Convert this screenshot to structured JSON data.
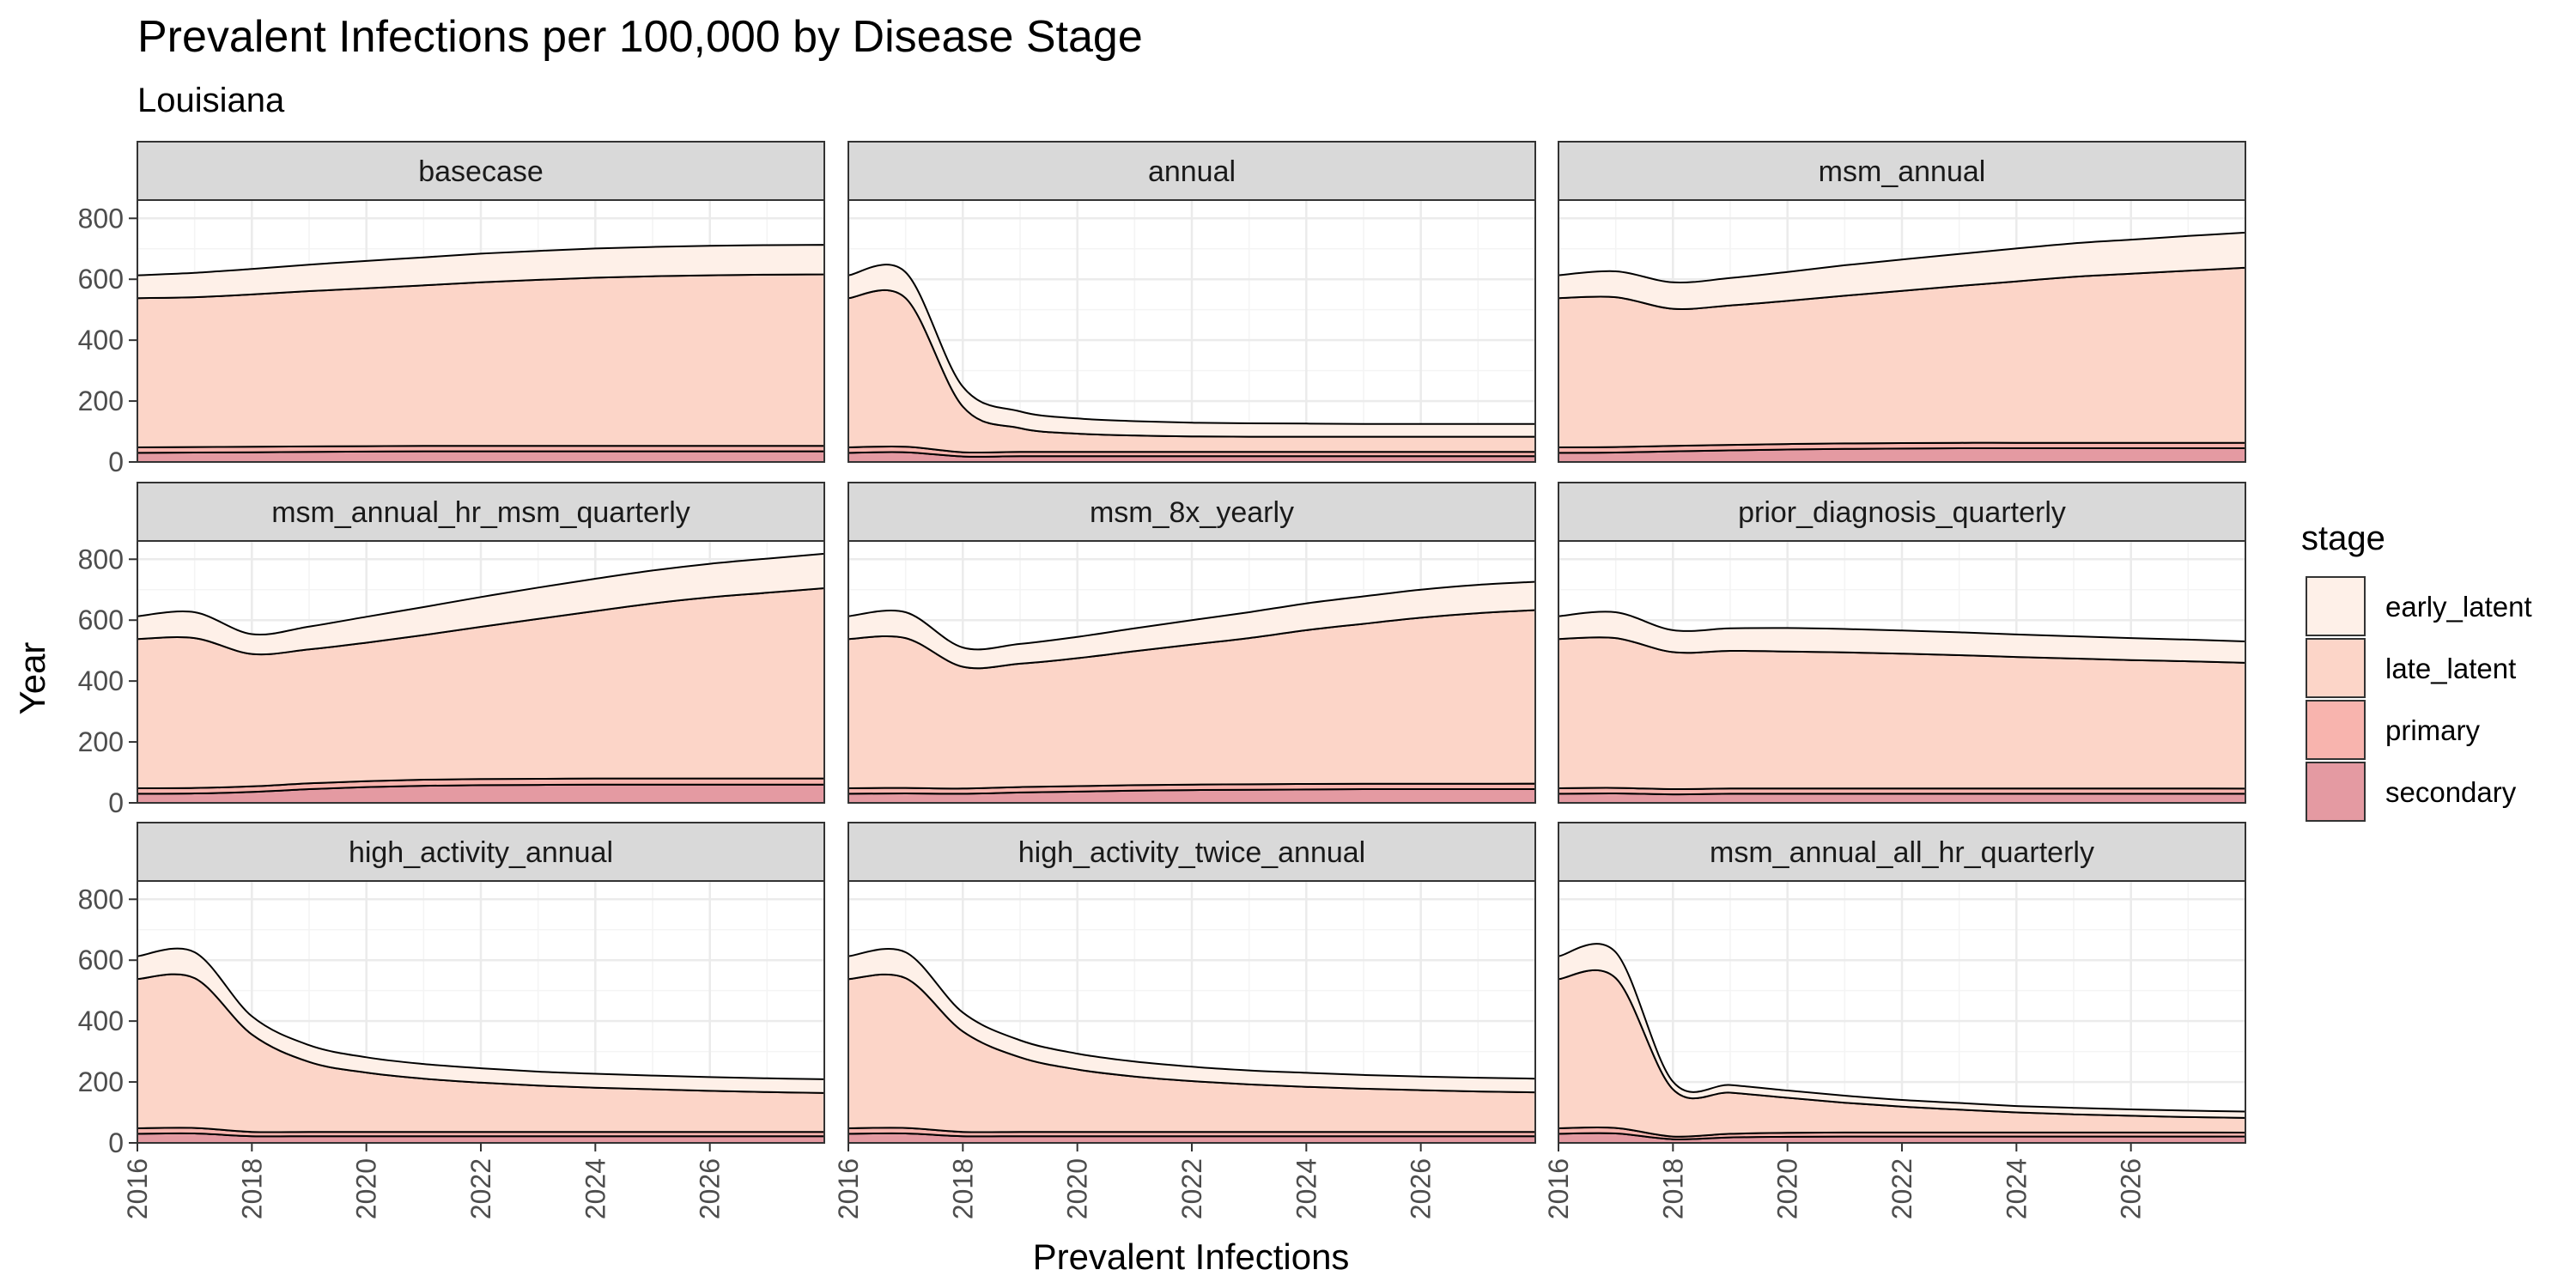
{
  "chart_data": {
    "type": "area",
    "title": "Prevalent Infections per 100,000 by Disease Stage",
    "subtitle": "Louisiana",
    "xlabel": "Prevalent Infections",
    "ylabel": "Year",
    "xlim": [
      2016,
      2028
    ],
    "ylim": [
      0,
      860
    ],
    "x_ticks": [
      "2016",
      "2018",
      "2020",
      "2022",
      "2024",
      "2026"
    ],
    "y_ticks": [
      "0",
      "200",
      "400",
      "600",
      "800"
    ],
    "grid": true,
    "stacked": true,
    "legend": {
      "title": "stage",
      "placement": "right",
      "entries": [
        "early_latent",
        "late_latent",
        "primary",
        "secondary"
      ]
    },
    "colors": {
      "early_latent": "#fef0e8",
      "late_latent": "#fcd5c8",
      "primary": "#f8b4ae",
      "secondary": "#e49aa2",
      "strip_bg": "#d9d9d9",
      "grid_major": "#ebebeb",
      "grid_minor": "#f4f4f4"
    },
    "x": [
      2016,
      2017,
      2018,
      2019,
      2020,
      2021,
      2022,
      2023,
      2024,
      2025,
      2026,
      2027,
      2028
    ],
    "panels": [
      {
        "name": "basecase",
        "series": [
          {
            "name": "secondary",
            "values": [
              30,
              31,
              32,
              33,
              34,
              35,
              35,
              35,
              35,
              35,
              35,
              35,
              35
            ]
          },
          {
            "name": "primary",
            "values": [
              18,
              18,
              18,
              18,
              18,
              18,
              18,
              18,
              18,
              18,
              18,
              18,
              18
            ]
          },
          {
            "name": "late_latent",
            "values": [
              490,
              492,
              500,
              510,
              518,
              527,
              537,
              545,
              552,
              557,
              560,
              562,
              563
            ]
          },
          {
            "name": "early_latent",
            "values": [
              75,
              80,
              84,
              87,
              90,
              92,
              94,
              95,
              96,
              96,
              97,
              97,
              97
            ]
          }
        ]
      },
      {
        "name": "annual",
        "series": [
          {
            "name": "secondary",
            "values": [
              30,
              32,
              18,
              19,
              19,
              19,
              19,
              19,
              19,
              19,
              19,
              19,
              19
            ]
          },
          {
            "name": "primary",
            "values": [
              18,
              18,
              14,
              14,
              14,
              14,
              14,
              14,
              14,
              14,
              14,
              14,
              14
            ]
          },
          {
            "name": "late_latent",
            "values": [
              490,
              488,
              150,
              78,
              60,
              54,
              51,
              50,
              50,
              50,
              50,
              50,
              50
            ]
          },
          {
            "name": "early_latent",
            "values": [
              75,
              85,
              65,
              55,
              50,
              47,
              45,
              44,
              43,
              42,
              42,
              42,
              42
            ]
          }
        ]
      },
      {
        "name": "msm_annual",
        "series": [
          {
            "name": "secondary",
            "values": [
              30,
              31,
              35,
              38,
              41,
              43,
              44,
              45,
              45,
              45,
              45,
              45,
              45
            ]
          },
          {
            "name": "primary",
            "values": [
              18,
              18,
              18,
              18,
              18,
              18,
              18,
              18,
              18,
              18,
              18,
              18,
              18
            ]
          },
          {
            "name": "late_latent",
            "values": [
              490,
              492,
              450,
              458,
              470,
              485,
              500,
              515,
              530,
              545,
              555,
              565,
              575
            ]
          },
          {
            "name": "early_latent",
            "values": [
              75,
              85,
              87,
              90,
              95,
              100,
              103,
              105,
              108,
              110,
              112,
              114,
              115
            ]
          }
        ]
      },
      {
        "name": "msm_annual_hr_msm_quarterly",
        "series": [
          {
            "name": "secondary",
            "values": [
              30,
              31,
              36,
              45,
              52,
              56,
              58,
              59,
              60,
              60,
              60,
              60,
              60
            ]
          },
          {
            "name": "primary",
            "values": [
              18,
              18,
              18,
              19,
              19,
              20,
              20,
              20,
              20,
              20,
              20,
              20,
              20
            ]
          },
          {
            "name": "late_latent",
            "values": [
              490,
              492,
              435,
              440,
              455,
              475,
              500,
              525,
              550,
              575,
              595,
              610,
              625
            ]
          },
          {
            "name": "early_latent",
            "values": [
              75,
              85,
              65,
              75,
              85,
              92,
              98,
              103,
              106,
              108,
              110,
              112,
              113
            ]
          }
        ]
      },
      {
        "name": "msm_8x_yearly",
        "series": [
          {
            "name": "secondary",
            "values": [
              30,
              31,
              30,
              34,
              37,
              40,
              42,
              43,
              44,
              45,
              45,
              45,
              45
            ]
          },
          {
            "name": "primary",
            "values": [
              18,
              18,
              17,
              18,
              18,
              18,
              18,
              18,
              18,
              18,
              18,
              18,
              18
            ]
          },
          {
            "name": "late_latent",
            "values": [
              490,
              492,
              400,
              405,
              420,
              440,
              460,
              480,
              505,
              525,
              545,
              560,
              570
            ]
          },
          {
            "name": "early_latent",
            "values": [
              75,
              85,
              63,
              65,
              70,
              75,
              80,
              85,
              88,
              90,
              92,
              93,
              93
            ]
          }
        ]
      },
      {
        "name": "prior_diagnosis_quarterly",
        "series": [
          {
            "name": "secondary",
            "values": [
              30,
              31,
              28,
              30,
              30,
              30,
              30,
              30,
              30,
              30,
              30,
              30,
              30
            ]
          },
          {
            "name": "primary",
            "values": [
              18,
              18,
              17,
              17,
              17,
              17,
              17,
              17,
              17,
              17,
              17,
              17,
              17
            ]
          },
          {
            "name": "late_latent",
            "values": [
              490,
              492,
              450,
              452,
              450,
              447,
              443,
              438,
              432,
              427,
              422,
              418,
              413
            ]
          },
          {
            "name": "early_latent",
            "values": [
              75,
              85,
              72,
              74,
              77,
              77,
              76,
              75,
              74,
              73,
              72,
              71,
              70
            ]
          }
        ]
      },
      {
        "name": "high_activity_annual",
        "series": [
          {
            "name": "secondary",
            "values": [
              30,
              31,
              22,
              22,
              22,
              22,
              22,
              22,
              22,
              22,
              22,
              22,
              22
            ]
          },
          {
            "name": "primary",
            "values": [
              18,
              18,
              14,
              14,
              14,
              14,
              14,
              14,
              14,
              14,
              14,
              14,
              14
            ]
          },
          {
            "name": "late_latent",
            "values": [
              490,
              492,
              320,
              230,
              195,
              175,
              162,
              152,
              145,
              140,
              135,
              131,
              128
            ]
          },
          {
            "name": "early_latent",
            "values": [
              75,
              85,
              60,
              55,
              50,
              48,
              47,
              46,
              46,
              45,
              45,
              45,
              45
            ]
          }
        ]
      },
      {
        "name": "high_activity_twice_annual",
        "series": [
          {
            "name": "secondary",
            "values": [
              30,
              31,
              22,
              22,
              22,
              22,
              22,
              22,
              22,
              22,
              22,
              22,
              22
            ]
          },
          {
            "name": "primary",
            "values": [
              18,
              18,
              14,
              14,
              14,
              14,
              14,
              14,
              14,
              14,
              14,
              14,
              14
            ]
          },
          {
            "name": "late_latent",
            "values": [
              490,
              492,
              330,
              245,
              205,
              182,
              167,
              156,
              148,
              142,
              137,
              133,
              130
            ]
          },
          {
            "name": "early_latent",
            "values": [
              75,
              85,
              62,
              56,
              52,
              49,
              47,
              46,
              46,
              45,
              45,
              45,
              45
            ]
          }
        ]
      },
      {
        "name": "msm_annual_all_hr_quarterly",
        "series": [
          {
            "name": "secondary",
            "values": [
              30,
              31,
              12,
              18,
              20,
              21,
              21,
              21,
              21,
              21,
              21,
              21,
              21
            ]
          },
          {
            "name": "primary",
            "values": [
              18,
              18,
              9,
              12,
              13,
              13,
              13,
              13,
              13,
              13,
              13,
              13,
              13
            ]
          },
          {
            "name": "late_latent",
            "values": [
              490,
              492,
              155,
              135,
              115,
              98,
              85,
              75,
              66,
              60,
              55,
              51,
              48
            ]
          },
          {
            "name": "early_latent",
            "values": [
              75,
              85,
              25,
              25,
              24,
              23,
              22,
              22,
              21,
              21,
              21,
              21,
              21
            ]
          }
        ]
      }
    ]
  }
}
